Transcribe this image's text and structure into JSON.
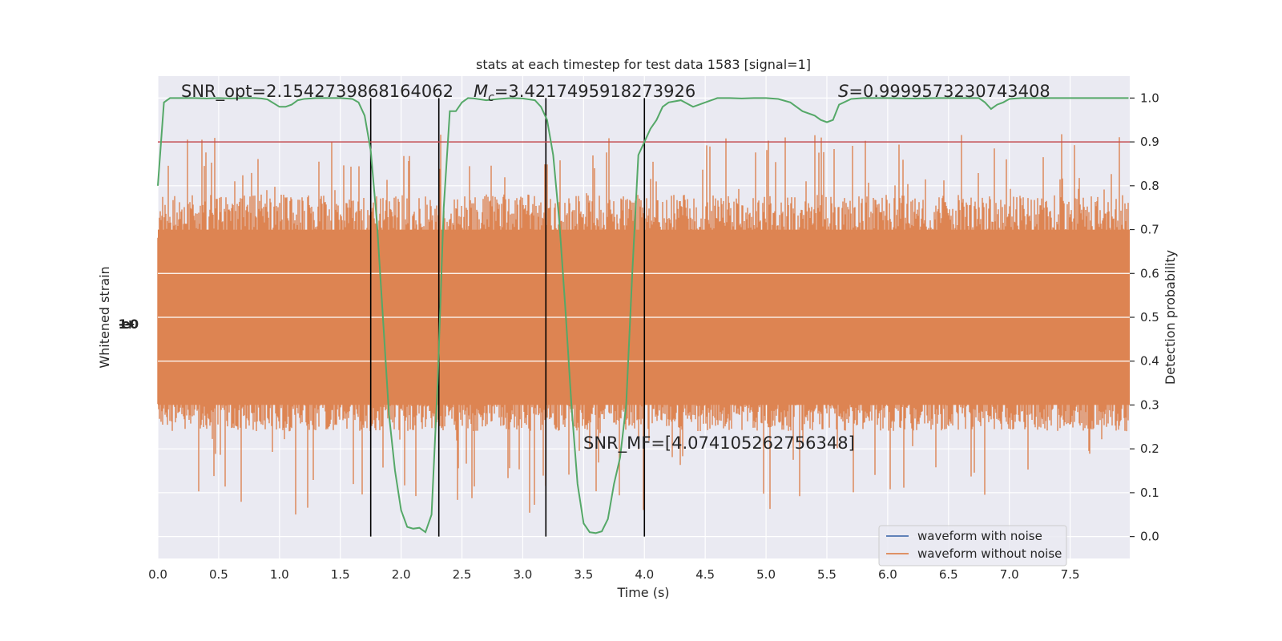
{
  "chart_data": {
    "type": "line",
    "title": "stats at each timestep for test data 1583 [signal=1]",
    "xlabel": "Time (s)",
    "ylabel_left": "Whitened strain",
    "ylabel_right": "Detection probability",
    "xlim": [
      0,
      7.99
    ],
    "ylim_right": [
      -0.05,
      1.05
    ],
    "grid": true,
    "x_ticks": [
      "0.0",
      "0.5",
      "1.0",
      "1.5",
      "2.0",
      "2.5",
      "3.0",
      "3.5",
      "4.0",
      "4.5",
      "5.0",
      "5.5",
      "6.0",
      "6.5",
      "7.0",
      "7.5"
    ],
    "x_tick_values": [
      0,
      0.5,
      1,
      1.5,
      2,
      2.5,
      3,
      3.5,
      4,
      4.5,
      5,
      5.5,
      6,
      6.5,
      7,
      7.5
    ],
    "y_ticks_right": [
      "0.0",
      "0.1",
      "0.2",
      "0.3",
      "0.4",
      "0.5",
      "0.6",
      "0.7",
      "0.8",
      "0.9",
      "1.0"
    ],
    "y_tick_values_right": [
      0,
      0.1,
      0.2,
      0.3,
      0.4,
      0.5,
      0.6,
      0.7,
      0.8,
      0.9,
      1.0
    ],
    "left_axis_tick_glyph": "-1e+0",
    "annotations": {
      "snr_opt": "SNR_opt=2.1542739868164062",
      "mc_symbol": "M",
      "mc_subscript": "c",
      "mc_value": "=3.4217495918273926",
      "s_symbol": "S",
      "s_value": "=0.9999573230743408",
      "snr_mf": "SNR_MF=[4.074105262756348]"
    },
    "threshold": 0.9,
    "segment_boundaries": [
      1.75,
      2.31,
      3.19,
      4.0
    ],
    "legend": {
      "placement": "lower-right",
      "entries": [
        "waveform with noise",
        "waveform without noise"
      ]
    },
    "colors": {
      "background": "#eaeaf2",
      "grid": "#ffffff",
      "noise_fill": "#dd8452",
      "with_noise_line": "#4c72b0",
      "probability_line": "#55a868",
      "threshold_line": "#c44e52",
      "boundary_line": "#000000"
    },
    "series": [
      {
        "name": "detection probability",
        "x": [
          0,
          0.05,
          0.1,
          0.2,
          0.3,
          0.4,
          0.5,
          0.6,
          0.7,
          0.8,
          0.85,
          0.9,
          1.0,
          1.05,
          1.1,
          1.15,
          1.2,
          1.3,
          1.4,
          1.5,
          1.6,
          1.65,
          1.7,
          1.75,
          1.8,
          1.85,
          1.9,
          1.95,
          2.0,
          2.05,
          2.1,
          2.15,
          2.2,
          2.25,
          2.3,
          2.35,
          2.4,
          2.45,
          2.5,
          2.55,
          2.6,
          2.7,
          2.8,
          2.9,
          3.0,
          3.1,
          3.15,
          3.2,
          3.25,
          3.3,
          3.35,
          3.4,
          3.45,
          3.5,
          3.55,
          3.6,
          3.65,
          3.7,
          3.75,
          3.8,
          3.85,
          3.9,
          3.95,
          4.0,
          4.05,
          4.1,
          4.15,
          4.2,
          4.3,
          4.4,
          4.45,
          4.5,
          4.6,
          4.7,
          4.8,
          4.9,
          5.0,
          5.1,
          5.2,
          5.3,
          5.4,
          5.45,
          5.5,
          5.55,
          5.6,
          5.7,
          5.8,
          5.9,
          6.0,
          6.2,
          6.4,
          6.6,
          6.75,
          6.8,
          6.85,
          6.9,
          6.95,
          7.0,
          7.1,
          7.2,
          7.5,
          7.7,
          7.98
        ],
        "values": [
          0.8,
          0.99,
          1.0,
          1.0,
          1.0,
          0.999,
          1.0,
          0.999,
          1.0,
          1.0,
          0.999,
          0.997,
          0.98,
          0.98,
          0.985,
          0.995,
          0.998,
          1.0,
          1.0,
          1.0,
          0.998,
          0.99,
          0.96,
          0.88,
          0.72,
          0.5,
          0.28,
          0.15,
          0.06,
          0.022,
          0.018,
          0.02,
          0.01,
          0.05,
          0.35,
          0.75,
          0.97,
          0.97,
          0.99,
          1.0,
          0.999,
          0.995,
          0.998,
          1.0,
          0.999,
          0.995,
          0.98,
          0.95,
          0.87,
          0.72,
          0.52,
          0.3,
          0.12,
          0.03,
          0.01,
          0.008,
          0.012,
          0.04,
          0.12,
          0.18,
          0.3,
          0.6,
          0.87,
          0.9,
          0.93,
          0.95,
          0.98,
          0.99,
          0.995,
          0.98,
          0.985,
          0.99,
          1.0,
          1.0,
          0.999,
          1.0,
          1.0,
          0.998,
          0.99,
          0.97,
          0.96,
          0.95,
          0.945,
          0.95,
          0.985,
          0.998,
          1.0,
          1.0,
          1.0,
          0.999,
          1.0,
          1.0,
          1.0,
          0.99,
          0.975,
          0.985,
          0.99,
          0.998,
          1.0,
          1.0,
          1.0,
          1.0,
          1.0
        ]
      },
      {
        "name": "waveform without noise",
        "description_values": "dense noise band spanning approx 0.3 to 0.7 on the probability axis with spikes reaching 0.0 to 0.9"
      }
    ]
  }
}
